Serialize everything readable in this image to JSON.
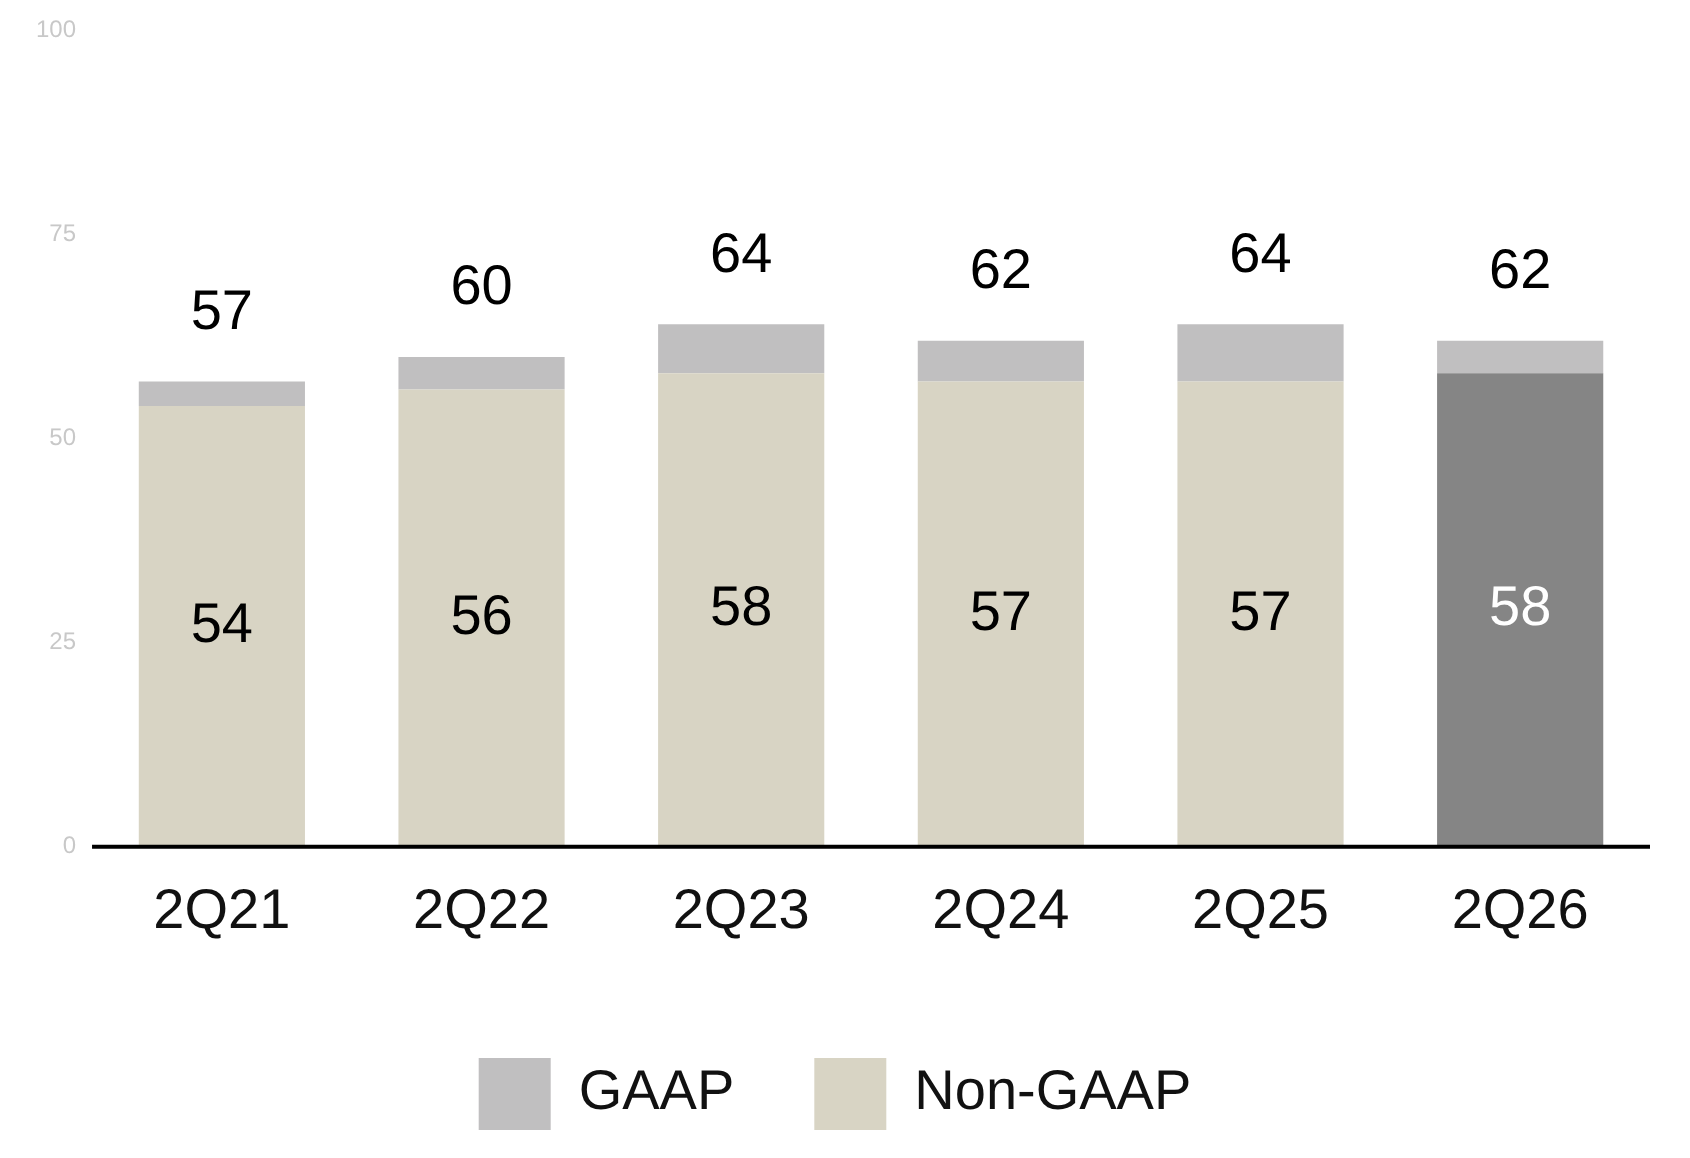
{
  "chart_data": {
    "type": "bar",
    "stacked": true,
    "categories": [
      "2Q21",
      "2Q22",
      "2Q23",
      "2Q24",
      "2Q25",
      "2Q26"
    ],
    "series": [
      {
        "name": "Non-GAAP",
        "color": "#d8d4c4",
        "colors": [
          "#d8d4c4",
          "#d8d4c4",
          "#d8d4c4",
          "#d8d4c4",
          "#d8d4c4",
          "#858585"
        ],
        "values": [
          54,
          56,
          58,
          57,
          57,
          58
        ],
        "value_labels": [
          "54",
          "56",
          "58",
          "57",
          "57",
          "58"
        ]
      },
      {
        "name": "GAAP",
        "color": "#c0bfc0",
        "values": [
          3,
          4,
          6,
          5,
          7,
          4
        ]
      }
    ],
    "totals": [
      "57",
      "60",
      "64",
      "62",
      "64",
      "62"
    ],
    "ylim": [
      0,
      100
    ],
    "yticks": [
      0,
      25,
      50,
      75,
      100
    ],
    "grid": false,
    "legend": "bottom"
  }
}
